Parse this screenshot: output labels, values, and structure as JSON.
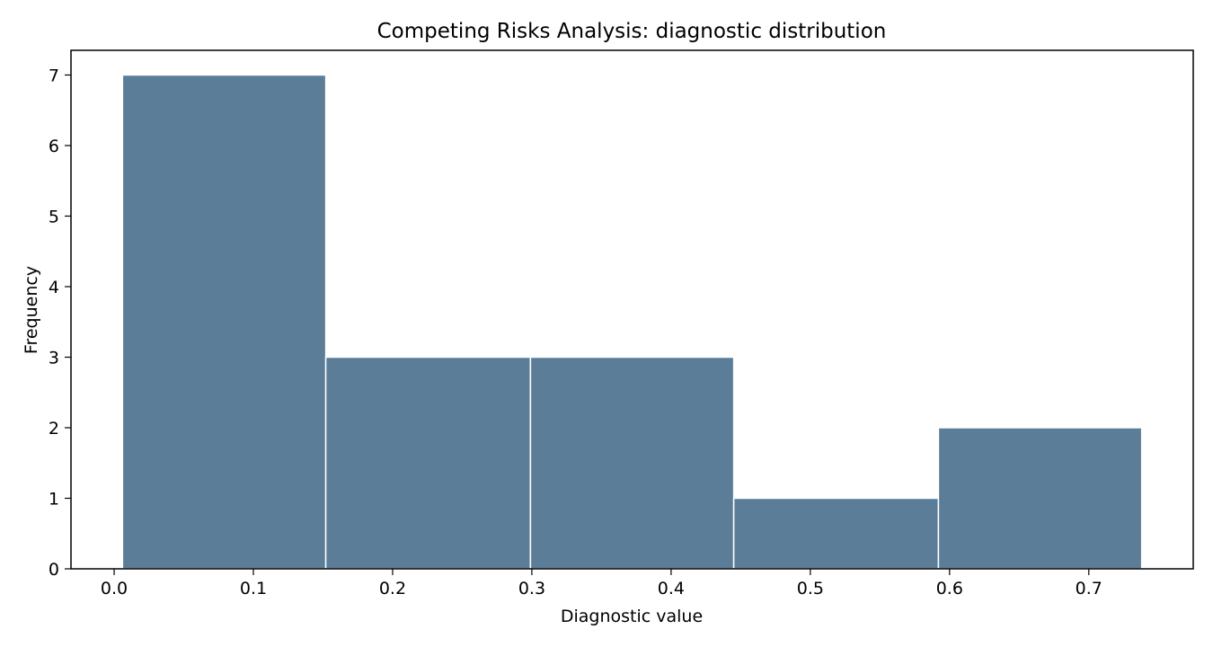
{
  "chart_data": {
    "type": "bar",
    "title": "Competing Risks Analysis: diagnostic distribution",
    "xlabel": "Diagnostic value",
    "ylabel": "Frequency",
    "bins": [
      {
        "x0": 0.006,
        "x1": 0.152,
        "count": 7
      },
      {
        "x0": 0.152,
        "x1": 0.299,
        "count": 3
      },
      {
        "x0": 0.299,
        "x1": 0.445,
        "count": 3
      },
      {
        "x0": 0.445,
        "x1": 0.592,
        "count": 1
      },
      {
        "x0": 0.592,
        "x1": 0.738,
        "count": 2
      }
    ],
    "xlim": [
      -0.031,
      0.775
    ],
    "ylim": [
      0,
      7.35
    ],
    "xticks": [
      0.0,
      0.1,
      0.2,
      0.3,
      0.4,
      0.5,
      0.6,
      0.7
    ],
    "xtick_labels": [
      "0.0",
      "0.1",
      "0.2",
      "0.3",
      "0.4",
      "0.5",
      "0.6",
      "0.7"
    ],
    "yticks": [
      0,
      1,
      2,
      3,
      4,
      5,
      6,
      7
    ],
    "ytick_labels": [
      "0",
      "1",
      "2",
      "3",
      "4",
      "5",
      "6",
      "7"
    ],
    "bar_color": "#5b7d98",
    "bar_edge_color": "#ffffff",
    "grid": false,
    "legend": false
  }
}
